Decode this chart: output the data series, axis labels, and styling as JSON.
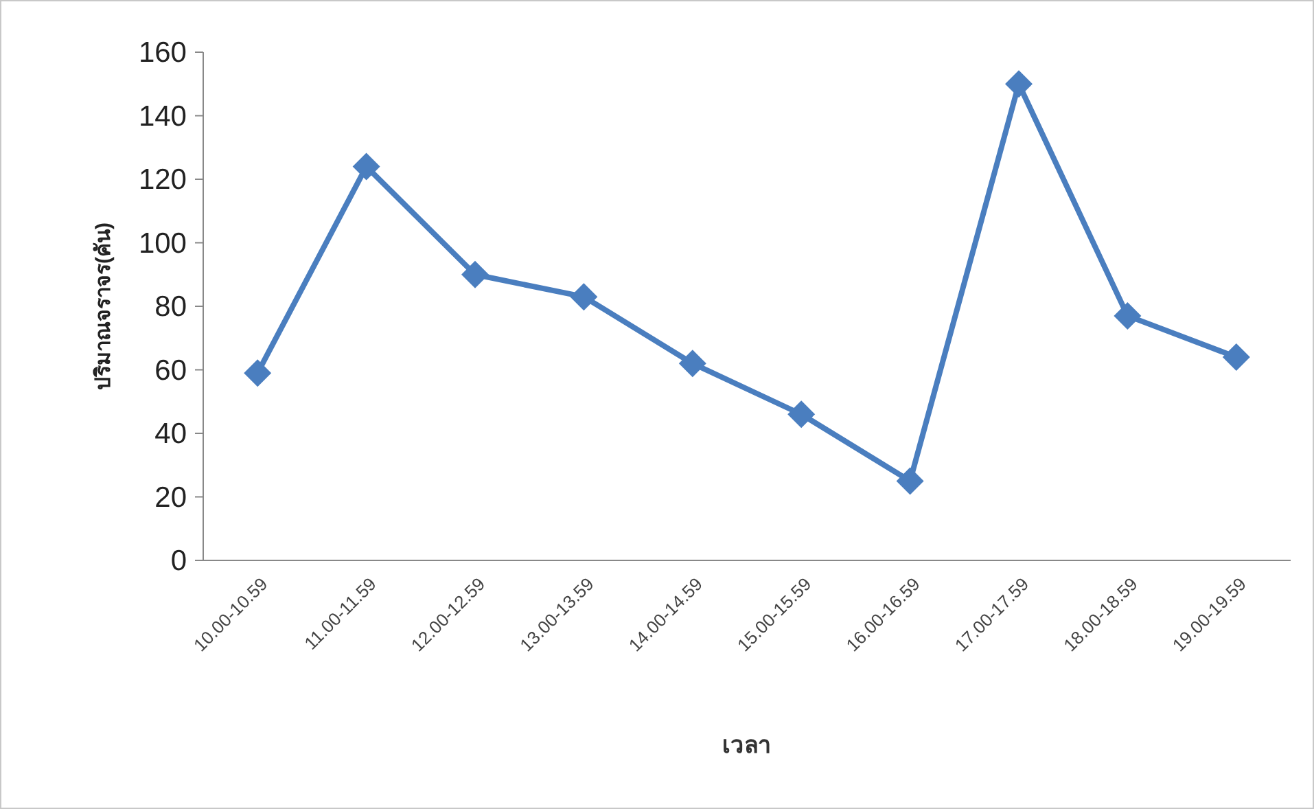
{
  "chart_data": {
    "type": "line",
    "xlabel": "เวลา",
    "ylabel": "ปริมาณจราจร(คัน)",
    "categories": [
      "10.00-10.59",
      "11.00-11.59",
      "12.00-12.59",
      "13.00-13.59",
      "14.00-14.59",
      "15.00-15.59",
      "16.00-16.59",
      "17.00-17.59",
      "18.00-18.59",
      "19.00-19.59"
    ],
    "series": [
      {
        "color": "#4a7ebf",
        "values": [
          59,
          124,
          90,
          83,
          62,
          46,
          25,
          150,
          77,
          64
        ]
      }
    ],
    "ylim": [
      0,
      160
    ],
    "yticks": [
      0,
      20,
      40,
      60,
      80,
      100,
      120,
      140,
      160
    ],
    "marker": "diamond",
    "line_style": "solid",
    "grid": false
  }
}
